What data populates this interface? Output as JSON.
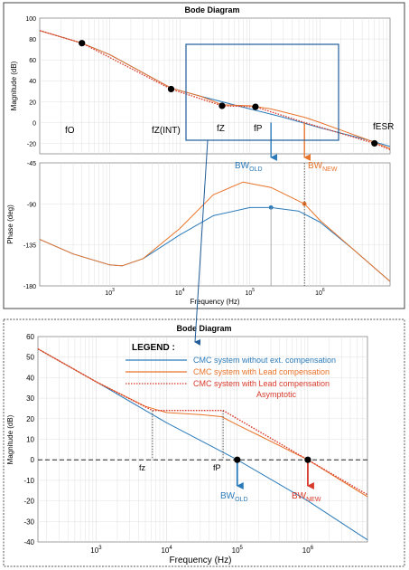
{
  "top_figure": {
    "title": "Bode Diagram",
    "xlabel": "Frequency  (Hz)",
    "magnitude_ylabel": "Magnitude (dB)",
    "phase_ylabel": "Phase (deg)",
    "point_labels": {
      "f0": "fO",
      "fz_int": "fZ(INT)",
      "fz": "fZ",
      "fp": "fP",
      "fesr": "fESR"
    },
    "bw_old": {
      "base": "BW",
      "sub": "OLD"
    },
    "bw_new": {
      "base": "BW",
      "sub": "NEW"
    }
  },
  "bottom_figure": {
    "title": "Bode Diagram",
    "xlabel": "Frequency  (Hz)",
    "ylabel": "Magnitude (dB)",
    "legend": {
      "title": "LEGEND :",
      "entries": [
        "CMC system without ext. compensation",
        "CMC system with Lead compensation",
        "CMC system with Lead compensation",
        "Asymptotic"
      ]
    },
    "point_labels": {
      "fz": "fz",
      "fp": "fP"
    },
    "bw_old": {
      "base": "BW",
      "sub": "OLD"
    },
    "bw_new": {
      "base": "BW",
      "sub": "NEW"
    }
  },
  "colors": {
    "blue": "#2b7bba",
    "orange": "#e8742b",
    "red": "#d93a2b",
    "zoom_box": "#1f5c99",
    "grid": "#e0e0e0"
  },
  "chart_data": [
    {
      "type": "line",
      "title": "Bode Diagram",
      "xlabel": "Frequency  (Hz)",
      "ylabel": "Magnitude (dB)",
      "x_scale": "log",
      "xlim": [
        100,
        10000000
      ],
      "ylim": [
        -30,
        100
      ],
      "x_tick_labels": [
        "10^3",
        "10^4",
        "10^5",
        "10^6"
      ],
      "y_ticks": [
        -20,
        0,
        20,
        40,
        60,
        80,
        100
      ],
      "grid": true,
      "series": [
        {
          "color": "blue",
          "x": [
            100,
            400,
            1000,
            7500,
            20000,
            100000,
            300000,
            1000000,
            5000000,
            10000000
          ],
          "y": [
            88,
            76,
            65,
            33,
            25,
            13,
            5,
            -5,
            -17,
            -23
          ]
        },
        {
          "color": "orange",
          "x": [
            100,
            400,
            1000,
            7500,
            20000,
            40000,
            100000,
            200000,
            600000,
            1000000,
            5000000,
            10000000
          ],
          "y": [
            88,
            76,
            65,
            33,
            25,
            17,
            16,
            13,
            5,
            0,
            -17,
            -25
          ]
        },
        {
          "color": "red",
          "style": "dotted",
          "x": [
            100,
            400,
            7500,
            40000,
            120000,
            600000,
            6000000,
            10000000
          ],
          "y": [
            88,
            76,
            32,
            16,
            15,
            0,
            -20,
            -26
          ]
        }
      ],
      "markers": [
        {
          "label": "fO",
          "x": 400,
          "y": 76
        },
        {
          "label": "fZ(INT)",
          "x": 7500,
          "y": 32
        },
        {
          "label": "fZ",
          "x": 40000,
          "y": 16
        },
        {
          "label": "fP",
          "x": 120000,
          "y": 15
        },
        {
          "label": "fESR",
          "x": 6000000,
          "y": -20
        }
      ],
      "bandwidth": [
        {
          "label": "BWOLD",
          "x": 200000
        },
        {
          "label": "BWNEW",
          "x": 600000
        }
      ]
    },
    {
      "type": "line",
      "xlabel": "Frequency  (Hz)",
      "ylabel": "Phase (deg)",
      "x_scale": "log",
      "xlim": [
        100,
        10000000
      ],
      "ylim": [
        -180,
        -45
      ],
      "y_ticks": [
        -45,
        -90,
        -135,
        -180
      ],
      "grid": true,
      "series": [
        {
          "color": "blue",
          "x": [
            100,
            300,
            1000,
            1500,
            3000,
            10000,
            30000,
            100000,
            200000,
            500000,
            1000000,
            3000000,
            10000000
          ],
          "y": [
            -129,
            -145,
            -157,
            -158,
            -150,
            -124,
            -103,
            -94,
            -94,
            -98,
            -110,
            -140,
            -175
          ]
        },
        {
          "color": "orange",
          "x": [
            100,
            300,
            1000,
            1500,
            3000,
            10000,
            30000,
            80000,
            200000,
            600000,
            1000000,
            3000000,
            10000000
          ],
          "y": [
            -129,
            -145,
            -157,
            -158,
            -150,
            -117,
            -80,
            -66,
            -72,
            -90,
            -108,
            -140,
            -175
          ]
        }
      ],
      "markers": [
        {
          "x": 200000,
          "y": -94
        },
        {
          "x": 600000,
          "y": -90
        }
      ]
    },
    {
      "type": "line",
      "title": "Bode Diagram",
      "xlabel": "Frequency  (Hz)",
      "ylabel": "Magnitude (dB)",
      "x_scale": "log",
      "xlim": [
        150,
        7000000
      ],
      "ylim": [
        -40,
        60
      ],
      "x_tick_labels": [
        "10^3",
        "10^4",
        "10^5",
        "10^6"
      ],
      "y_ticks": [
        -40,
        -30,
        -20,
        -10,
        0,
        10,
        20,
        30,
        40,
        50,
        60
      ],
      "grid": true,
      "series": [
        {
          "name": "CMC system without ext. compensation",
          "color": "blue",
          "x": [
            150,
            1000,
            10000,
            100000,
            1000000,
            7000000
          ],
          "y": [
            54,
            38,
            18,
            0,
            -20,
            -39
          ]
        },
        {
          "name": "CMC system with Lead compensation",
          "color": "orange",
          "x": [
            150,
            1000,
            5000,
            10000,
            30000,
            60000,
            100000,
            200000,
            1000000,
            7000000
          ],
          "y": [
            54,
            38,
            26,
            23,
            22,
            21,
            17,
            12,
            0,
            -18
          ]
        },
        {
          "name": "CMC system with Lead compensation Asymptotic",
          "color": "red",
          "style": "dotted",
          "x": [
            150,
            1000,
            6300,
            63000,
            1000000,
            7000000
          ],
          "y": [
            54,
            38,
            24,
            24,
            0,
            -17
          ]
        }
      ],
      "markers": [
        {
          "label": "fz",
          "x": 6300,
          "y": 24
        },
        {
          "label": "fP",
          "x": 63000,
          "y": 24
        },
        {
          "label": "BWOLD",
          "x": 100000,
          "y": 0
        },
        {
          "label": "BWNEW",
          "x": 1000000,
          "y": 0
        }
      ]
    }
  ]
}
